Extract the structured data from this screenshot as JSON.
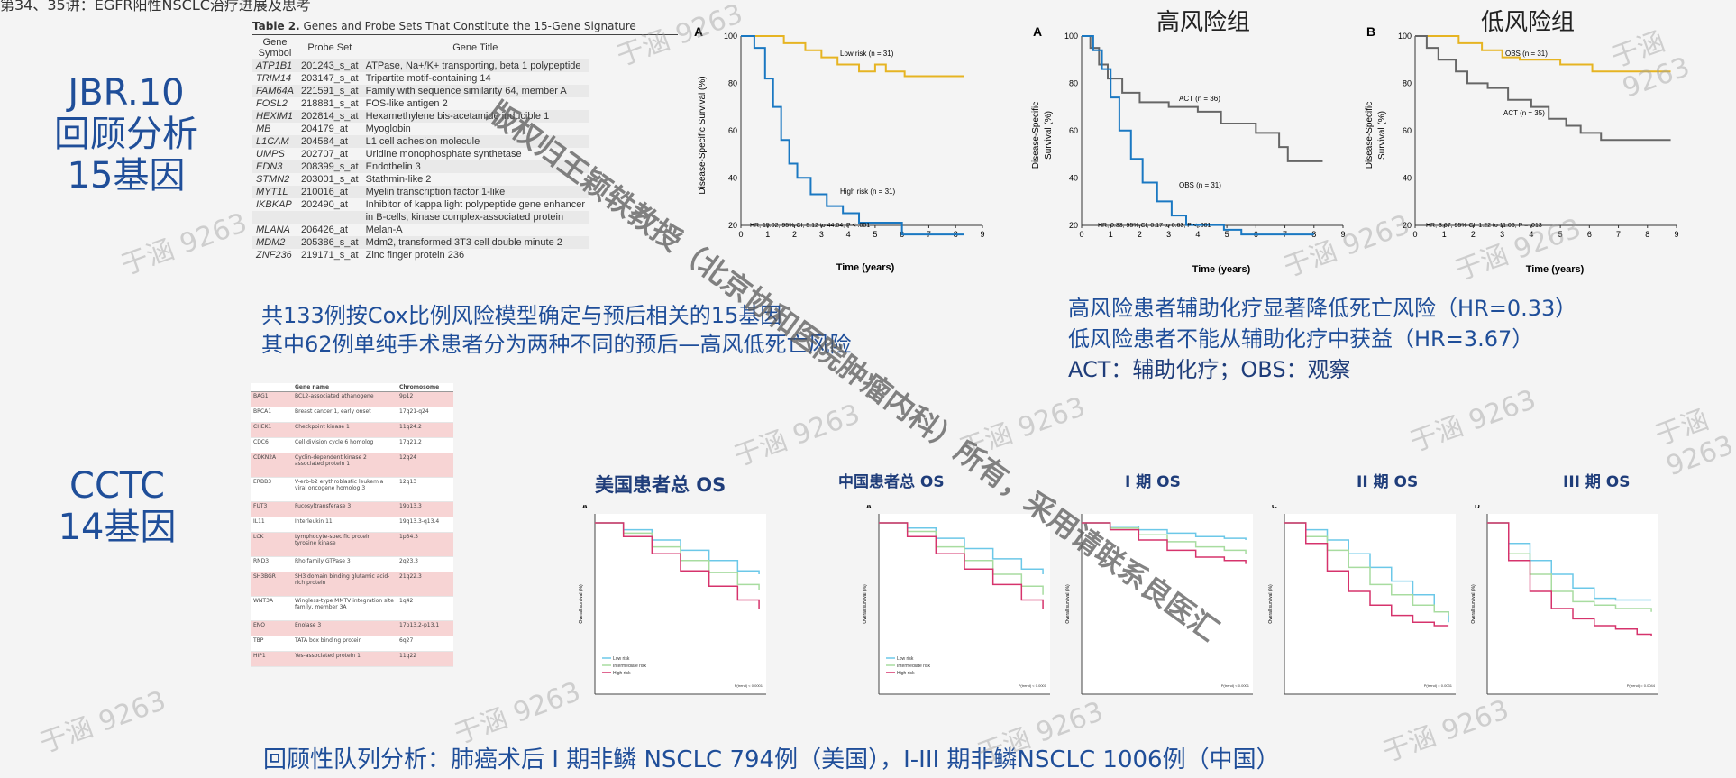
{
  "header": {
    "title": "第34、35讲：EGFR阳性NSCLC治疗进展及思考"
  },
  "sections": {
    "jbr": {
      "line1": "JBR.10",
      "line2": "回顾分析",
      "line3": "15基因"
    },
    "cctc": {
      "line1": "CCTC",
      "line2": "14基因"
    }
  },
  "gene_table": {
    "caption_bold": "Table 2.",
    "caption": "Genes and Probe Sets That Constitute the 15-Gene Signature",
    "col_symbol_1": "Gene",
    "col_symbol_2": "Symbol",
    "col_probe": "Probe Set",
    "col_title": "Gene Title",
    "rows": [
      {
        "symbol": "ATP1B1",
        "probe": "201243_s_at",
        "title": "ATPase, Na+/K+ transporting, beta 1 polypeptide"
      },
      {
        "symbol": "TRIM14",
        "probe": "203147_s_at",
        "title": "Tripartite motif-containing 14"
      },
      {
        "symbol": "FAM64A",
        "probe": "221591_s_at",
        "title": "Family with sequence similarity 64, member A"
      },
      {
        "symbol": "FOSL2",
        "probe": "218881_s_at",
        "title": "FOS-like antigen 2"
      },
      {
        "symbol": "HEXIM1",
        "probe": "202814_s_at",
        "title": "Hexamethylene bis-acetamide inducible 1"
      },
      {
        "symbol": "MB",
        "probe": "204179_at",
        "title": "Myoglobin"
      },
      {
        "symbol": "L1CAM",
        "probe": "204584_at",
        "title": "L1 cell adhesion molecule"
      },
      {
        "symbol": "UMPS",
        "probe": "202707_at",
        "title": "Uridine monophosphate synthetase"
      },
      {
        "symbol": "EDN3",
        "probe": "208399_s_at",
        "title": "Endothelin 3"
      },
      {
        "symbol": "STMN2",
        "probe": "203001_s_at",
        "title": "Stathmin-like 2"
      },
      {
        "symbol": "MYT1L",
        "probe": "210016_at",
        "title": "Myelin transcription factor 1-like"
      },
      {
        "symbol": "IKBKAP",
        "probe": "202490_at",
        "title": "Inhibitor of kappa light polypeptide gene enhancer"
      },
      {
        "symbol": "",
        "probe": "",
        "title": "in B-cells, kinase complex-associated protein"
      },
      {
        "symbol": "MLANA",
        "probe": "206426_at",
        "title": "Melan-A"
      },
      {
        "symbol": "MDM2",
        "probe": "205386_s_at",
        "title": "Mdm2, transformed 3T3 cell double minute 2"
      },
      {
        "symbol": "ZNF236",
        "probe": "219171_s_at",
        "title": "Zinc finger protein 236"
      }
    ]
  },
  "jbr_chart": {
    "panel_letter": "A",
    "low_label": "Low risk (n = 31)",
    "high_label": "High risk (n = 31)",
    "hr_text": "HR, 15.02; 95% CI, 5.12 to 44.04; P < .001"
  },
  "risk_charts": {
    "high_title": "高风险组",
    "low_title": "低风险组",
    "panel_a": "A",
    "panel_b": "B",
    "act_label_a": "ACT (n = 36)",
    "obs_label_a": "OBS (n = 31)",
    "hr_a": "HR, 0.33; 95% CI, 0.17 to 0.63; P < .001",
    "obs_label_b": "OBS (n = 31)",
    "act_label_b": "ACT (n = 35)",
    "hr_b": "HR, 3.67; 95% CI, 1.22 to 11.06; P = .013"
  },
  "texts": {
    "jbr_line1": "共133例按Cox比例风险模型确定与预后相关的15基因",
    "jbr_line2": "其中62例单纯手术患者分为两种不同的预后—高风低死亡风险",
    "risk_line1": "高风险患者辅助化疗显著降低死亡风险（HR=0.33）",
    "risk_line2": "低风险患者不能从辅助化疗中获益（HR=3.67）",
    "risk_line3": "ACT：辅助化疗；OBS：观察",
    "bottom": "回顾性队列分析：肺癌术后 I 期非鳞 NSCLC 794例（美国），I-III 期非鳞NSCLC 1006例（中国）"
  },
  "cctc_table": {
    "col_name": "Gene name",
    "col_chr": "Chromosome",
    "rows": [
      {
        "id": "BAG1",
        "name": "BCL2-associated athanogene",
        "chr": "9p12"
      },
      {
        "id": "BRCA1",
        "name": "Breast cancer 1, early onset",
        "chr": "17q21-q24"
      },
      {
        "id": "CHEK1",
        "name": "Checkpoint kinase 1",
        "chr": "11q24.2"
      },
      {
        "id": "CDC6",
        "name": "Cell division cycle 6 homolog",
        "chr": "17q21.2"
      },
      {
        "id": "CDKN2A",
        "name": "Cyclin-dependent kinase 2 associated protein 1",
        "chr": "12q24"
      },
      {
        "id": "ERBB3",
        "name": "V-erb-b2 erythroblastic leukemia viral oncogene homolog 3",
        "chr": "12q13"
      },
      {
        "id": "FUT3",
        "name": "Fucosyltransferase 3",
        "chr": "19p13.3"
      },
      {
        "id": "IL11",
        "name": "Interleukin 11",
        "chr": "19q13.3-q13.4"
      },
      {
        "id": "LCK",
        "name": "Lymphocyte-specific protein tyrosine kinase",
        "chr": "1p34.3"
      },
      {
        "id": "RND3",
        "name": "Rho family GTPase 3",
        "chr": "2q23.3"
      },
      {
        "id": "SH3BGR",
        "name": "SH3 domain binding glutamic acid-rich protein",
        "chr": "21q22.3"
      },
      {
        "id": "WNT3A",
        "name": "Wingless-type MMTV integration site family, member 3A",
        "chr": "1q42"
      },
      {
        "id": "ENO",
        "name": "Enolase 3",
        "chr": "17p13.2-p13.1"
      },
      {
        "id": "TBP",
        "name": "TATA box binding protein",
        "chr": "6q27"
      },
      {
        "id": "HIP1",
        "name": "Yes-associated protein 1",
        "chr": "11q22"
      }
    ]
  },
  "small_charts": [
    {
      "title": "美国患者总  OS",
      "panel": "A",
      "legend": [
        "Low risk",
        "Intermediate risk",
        "High risk"
      ],
      "pval": "P(trend) < 0.0001"
    },
    {
      "title": "中国患者总  OS",
      "panel": "A",
      "legend": [
        "Low risk",
        "Intermediate risk",
        "High risk"
      ],
      "pval": "P(trend) < 0.0001"
    },
    {
      "title": "I 期 OS",
      "panel": "",
      "legend": [],
      "pval": "P(trend) < 0.0001"
    },
    {
      "title": "II 期  OS",
      "panel": "C",
      "legend": [],
      "pval": "P(trend) = 0.0031"
    },
    {
      "title": "III  期  OS",
      "panel": "D",
      "legend": [],
      "pval": "P(trend) = 0.0044"
    }
  ],
  "watermarks": {
    "text": "于涵 9263",
    "diagonal": "版权归王颖轶教授（北京协和医院肿瘤内科）所有，采用请联系良医汇"
  },
  "axes": {
    "km_ylabel": "Disease-Specific Survival (%)",
    "km_ylabel_a": "Disease-Specific",
    "km_ylabel_b": "Survival (%)",
    "time_label": "Time (years)",
    "y_ticks": [
      "100",
      "80",
      "60",
      "40",
      "20",
      "0"
    ],
    "x_ticks": [
      "0",
      "1",
      "2",
      "3",
      "4",
      "5",
      "6",
      "7",
      "8",
      "9"
    ],
    "os_ylabel": "Overall survival (%)"
  },
  "colors": {
    "blue": "#1f4e99",
    "gold": "#e6b422",
    "km_blue": "#1a78c2",
    "gray": "#666666",
    "cyan": "#6cc8e8",
    "green": "#a8dca0",
    "magenta": "#d6336c"
  }
}
